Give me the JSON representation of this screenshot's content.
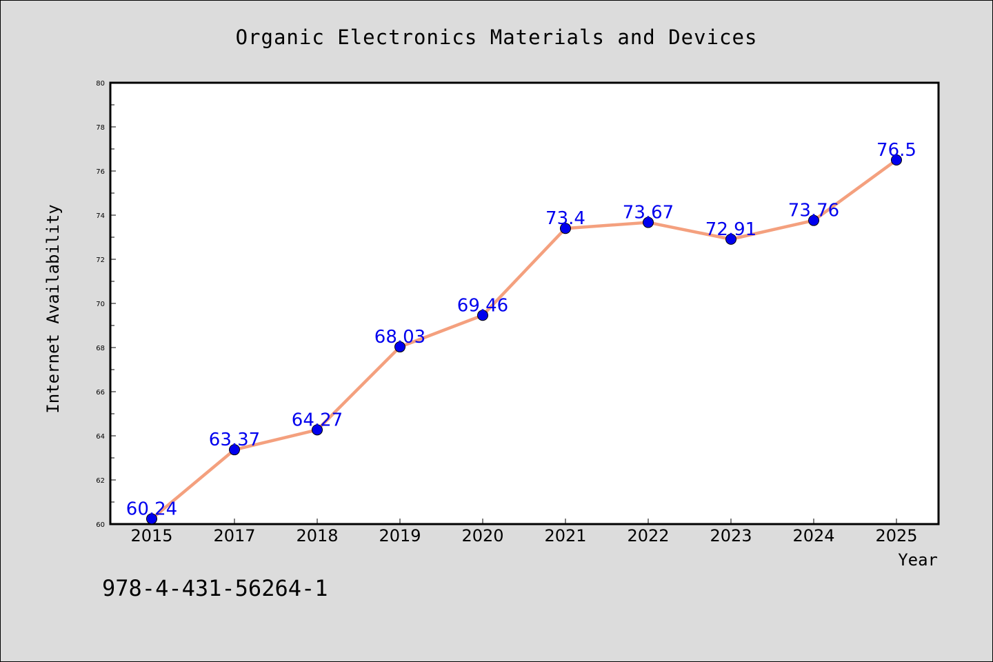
{
  "chart_data": {
    "type": "line",
    "title": "Organic Electronics Materials and Devices",
    "xlabel": "Year",
    "ylabel": "Internet Availability",
    "categories": [
      "2015",
      "2017",
      "2018",
      "2019",
      "2020",
      "2021",
      "2022",
      "2023",
      "2024",
      "2025"
    ],
    "series": [
      {
        "values": [
          60.24,
          63.37,
          64.27,
          68.03,
          69.46,
          73.4,
          73.67,
          72.91,
          73.76,
          76.5
        ],
        "line_color": "#f4a07e",
        "marker_color": "#0000ee"
      }
    ],
    "ylim": [
      60,
      80
    ],
    "y_major_ticks": [
      60,
      62,
      64,
      66,
      68,
      70,
      72,
      74,
      76,
      78,
      80
    ],
    "grid": false,
    "data_label_color": "#0000ee"
  },
  "footnote": "978-4-431-56264-1"
}
